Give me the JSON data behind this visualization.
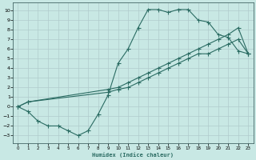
{
  "xlabel": "Humidex (Indice chaleur)",
  "bg_color": "#c8e8e4",
  "grid_color": "#b0cccc",
  "line_color": "#2a6b62",
  "xlim": [
    -0.5,
    23.5
  ],
  "ylim": [
    -3.8,
    10.8
  ],
  "xticks": [
    0,
    1,
    2,
    3,
    4,
    5,
    6,
    7,
    8,
    9,
    10,
    11,
    12,
    13,
    14,
    15,
    16,
    17,
    18,
    19,
    20,
    21,
    22,
    23
  ],
  "yticks": [
    -3,
    -2,
    -1,
    0,
    1,
    2,
    3,
    4,
    5,
    6,
    7,
    8,
    9,
    10
  ],
  "line1_x": [
    0,
    1,
    2,
    3,
    4,
    5,
    6,
    7,
    8,
    9,
    10,
    11,
    12,
    13,
    14,
    15,
    16,
    17,
    18,
    19,
    20,
    21,
    22,
    23
  ],
  "line1_y": [
    0,
    -0.5,
    -1.5,
    -2.0,
    -2.0,
    -2.5,
    -3.0,
    -2.5,
    -0.8,
    1.2,
    4.5,
    6.0,
    8.2,
    10.1,
    10.1,
    9.8,
    10.1,
    10.1,
    9.0,
    8.8,
    7.5,
    7.2,
    5.8,
    5.5
  ],
  "line2_x": [
    0,
    1,
    9,
    10,
    11,
    12,
    13,
    14,
    15,
    16,
    17,
    18,
    19,
    20,
    21,
    22,
    23
  ],
  "line2_y": [
    0,
    0.5,
    1.8,
    2.0,
    2.5,
    3.0,
    3.5,
    4.0,
    4.5,
    5.0,
    5.5,
    6.0,
    6.5,
    7.0,
    7.5,
    8.2,
    5.5
  ],
  "line3_x": [
    0,
    1,
    9,
    10,
    11,
    12,
    13,
    14,
    15,
    16,
    17,
    18,
    19,
    20,
    21,
    22,
    23
  ],
  "line3_y": [
    0,
    0.5,
    1.5,
    1.8,
    2.0,
    2.5,
    3.0,
    3.5,
    4.0,
    4.5,
    5.0,
    5.5,
    5.5,
    6.0,
    6.5,
    7.0,
    5.5
  ]
}
